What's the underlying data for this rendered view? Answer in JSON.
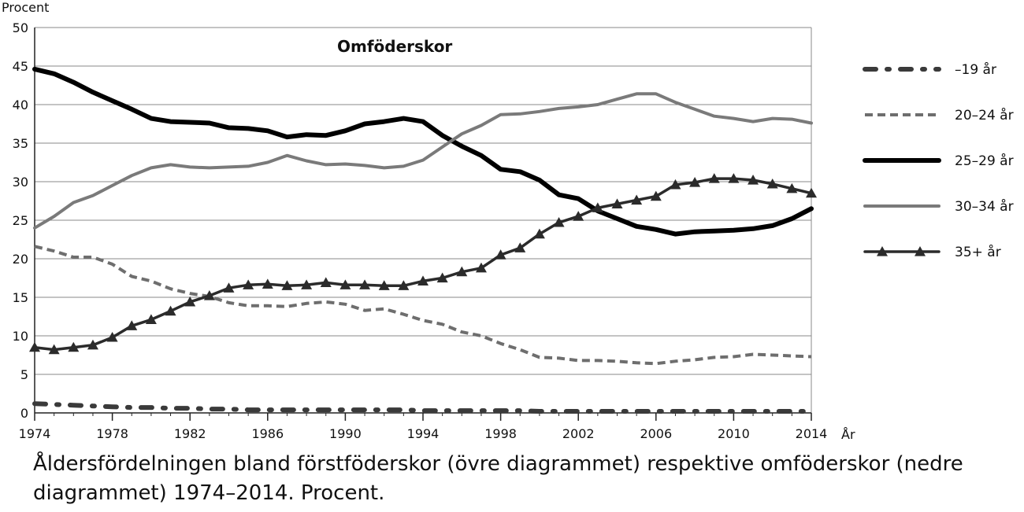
{
  "caption": "Åldersfördelningen bland förstföderskor (övre diagrammet) respektive omföderskor (nedre diagrammet) 1974–2014. Procent.",
  "chart_data": {
    "type": "line",
    "title": "Omföderskor",
    "ylabel": "Procent",
    "xlabel": "År",
    "ylim": [
      0,
      50
    ],
    "xlim": [
      1974,
      2014
    ],
    "yticks": [
      "0",
      "5",
      "10",
      "15",
      "20",
      "25",
      "30",
      "35",
      "40",
      "45",
      "50"
    ],
    "xticks": [
      "1974",
      "1978",
      "1982",
      "1986",
      "1990",
      "1994",
      "1998",
      "2002",
      "2006",
      "2010",
      "2014"
    ],
    "grid": "horizontal",
    "legend_position": "right",
    "x": [
      1974,
      1975,
      1976,
      1977,
      1978,
      1979,
      1980,
      1981,
      1982,
      1983,
      1984,
      1985,
      1986,
      1987,
      1988,
      1989,
      1990,
      1991,
      1992,
      1993,
      1994,
      1995,
      1996,
      1997,
      1998,
      1999,
      2000,
      2001,
      2002,
      2003,
      2004,
      2005,
      2006,
      2007,
      2008,
      2009,
      2010,
      2011,
      2012,
      2013,
      2014
    ],
    "series": [
      {
        "name": "–19 år",
        "style": "dashdot",
        "color": "#3a3a3a",
        "values": [
          1.2,
          1.1,
          1.0,
          0.9,
          0.8,
          0.7,
          0.7,
          0.6,
          0.6,
          0.5,
          0.5,
          0.4,
          0.4,
          0.4,
          0.4,
          0.4,
          0.4,
          0.4,
          0.4,
          0.4,
          0.3,
          0.3,
          0.3,
          0.3,
          0.3,
          0.3,
          0.2,
          0.2,
          0.2,
          0.2,
          0.2,
          0.2,
          0.2,
          0.2,
          0.2,
          0.2,
          0.2,
          0.2,
          0.2,
          0.2,
          0.2
        ]
      },
      {
        "name": "20–24 år",
        "style": "dashed",
        "color": "#6e6e6e",
        "values": [
          21.6,
          21.0,
          20.2,
          20.2,
          19.3,
          17.7,
          17.1,
          16.1,
          15.5,
          15.1,
          14.3,
          13.9,
          13.9,
          13.8,
          14.2,
          14.4,
          14.1,
          13.3,
          13.5,
          12.8,
          12.0,
          11.5,
          10.5,
          10.0,
          9.0,
          8.2,
          7.2,
          7.1,
          6.8,
          6.8,
          6.7,
          6.5,
          6.4,
          6.7,
          6.9,
          7.2,
          7.3,
          7.6,
          7.5,
          7.4,
          7.3
        ]
      },
      {
        "name": "25–29 år",
        "style": "solid-thick",
        "color": "#000000",
        "values": [
          44.6,
          44.0,
          42.9,
          41.6,
          40.5,
          39.4,
          38.2,
          37.8,
          37.7,
          37.6,
          37.0,
          36.9,
          36.6,
          35.8,
          36.1,
          36.0,
          36.6,
          37.5,
          37.8,
          38.2,
          37.8,
          36.0,
          34.6,
          33.4,
          31.6,
          31.3,
          30.2,
          28.3,
          27.8,
          26.2,
          25.2,
          24.2,
          23.8,
          23.2,
          23.5,
          23.6,
          23.7,
          23.9,
          24.3,
          25.2,
          26.5
        ]
      },
      {
        "name": "30–34 år",
        "style": "solid",
        "color": "#7a7a7a",
        "values": [
          24.0,
          25.5,
          27.3,
          28.2,
          29.5,
          30.8,
          31.8,
          32.2,
          31.9,
          31.8,
          31.9,
          32.0,
          32.5,
          33.4,
          32.7,
          32.2,
          32.3,
          32.1,
          31.8,
          32.0,
          32.8,
          34.5,
          36.2,
          37.3,
          38.7,
          38.8,
          39.1,
          39.5,
          39.7,
          40.0,
          40.7,
          41.4,
          41.4,
          40.3,
          39.4,
          38.5,
          38.2,
          37.8,
          38.2,
          38.1,
          37.6
        ]
      },
      {
        "name": "35+ år",
        "style": "triangle-markers",
        "color": "#2b2b2b",
        "values": [
          8.5,
          8.2,
          8.5,
          8.8,
          9.8,
          11.3,
          12.1,
          13.2,
          14.4,
          15.2,
          16.2,
          16.6,
          16.7,
          16.5,
          16.6,
          16.9,
          16.6,
          16.6,
          16.5,
          16.5,
          17.1,
          17.5,
          18.3,
          18.8,
          20.5,
          21.4,
          23.2,
          24.7,
          25.5,
          26.6,
          27.1,
          27.6,
          28.1,
          29.6,
          29.9,
          30.4,
          30.4,
          30.2,
          29.7,
          29.1,
          28.5
        ]
      }
    ]
  }
}
